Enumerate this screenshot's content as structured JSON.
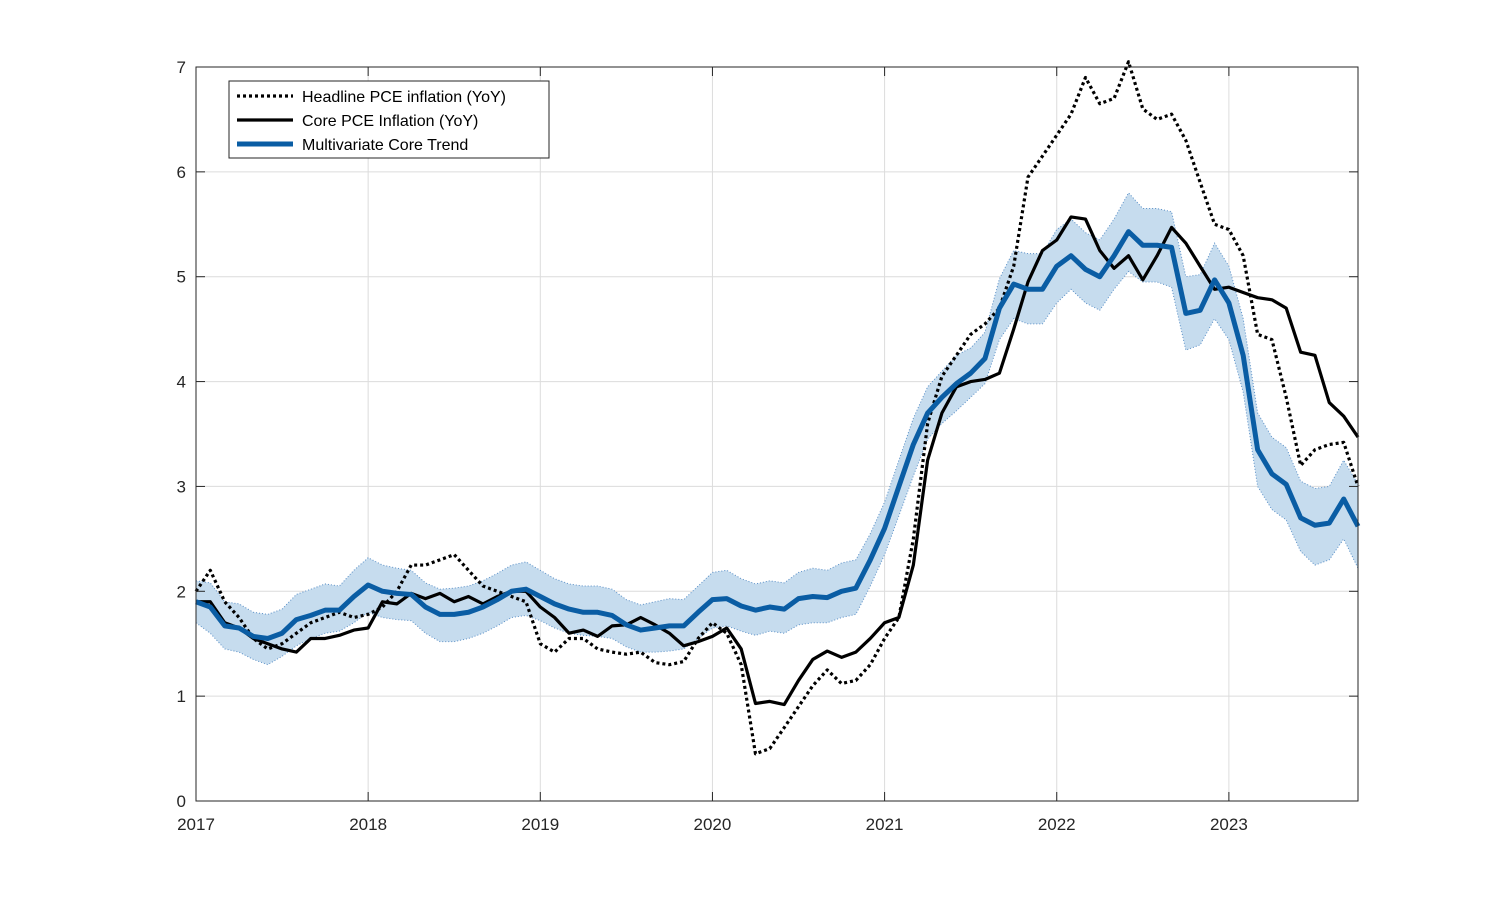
{
  "chart_data": {
    "type": "line",
    "title": "",
    "xlabel": "",
    "ylabel": "",
    "xlim": [
      2017.0,
      2023.75
    ],
    "ylim": [
      0,
      7
    ],
    "x_ticks": [
      2017,
      2018,
      2019,
      2020,
      2021,
      2022,
      2023
    ],
    "x_tick_labels": [
      "2017",
      "2018",
      "2019",
      "2020",
      "2021",
      "2022",
      "2023"
    ],
    "y_ticks": [
      0,
      1,
      2,
      3,
      4,
      5,
      6,
      7
    ],
    "y_tick_labels": [
      "0",
      "1",
      "2",
      "3",
      "4",
      "5",
      "6",
      "7"
    ],
    "grid": true,
    "legend_position": "top-left",
    "colors": {
      "headline": "#000000",
      "core": "#000000",
      "trend": "#0a5da4",
      "band": "#c6dcee"
    },
    "series": [
      {
        "name": "Headline PCE inflation (YoY)",
        "style": "dotted",
        "x": [
          2017.0,
          2017.083,
          2017.167,
          2017.25,
          2017.333,
          2017.417,
          2017.5,
          2017.583,
          2017.667,
          2017.75,
          2017.833,
          2017.917,
          2018.0,
          2018.083,
          2018.167,
          2018.25,
          2018.333,
          2018.417,
          2018.5,
          2018.583,
          2018.667,
          2018.75,
          2018.833,
          2018.917,
          2019.0,
          2019.083,
          2019.167,
          2019.25,
          2019.333,
          2019.417,
          2019.5,
          2019.583,
          2019.667,
          2019.75,
          2019.833,
          2019.917,
          2020.0,
          2020.083,
          2020.167,
          2020.25,
          2020.333,
          2020.417,
          2020.5,
          2020.583,
          2020.667,
          2020.75,
          2020.833,
          2020.917,
          2021.0,
          2021.083,
          2021.167,
          2021.25,
          2021.333,
          2021.417,
          2021.5,
          2021.583,
          2021.667,
          2021.75,
          2021.833,
          2021.917,
          2022.0,
          2022.083,
          2022.167,
          2022.25,
          2022.333,
          2022.417,
          2022.5,
          2022.583,
          2022.667,
          2022.75,
          2022.833,
          2022.917,
          2023.0,
          2023.083,
          2023.167,
          2023.25,
          2023.333,
          2023.417,
          2023.5,
          2023.583,
          2023.667,
          2023.75
        ],
        "y": [
          2.0,
          2.2,
          1.9,
          1.75,
          1.55,
          1.45,
          1.5,
          1.6,
          1.7,
          1.75,
          1.8,
          1.75,
          1.78,
          1.85,
          2.0,
          2.25,
          2.25,
          2.3,
          2.35,
          2.2,
          2.05,
          2.0,
          1.95,
          1.9,
          1.5,
          1.42,
          1.55,
          1.55,
          1.45,
          1.42,
          1.4,
          1.42,
          1.32,
          1.3,
          1.33,
          1.55,
          1.7,
          1.6,
          1.3,
          0.45,
          0.5,
          0.7,
          0.9,
          1.1,
          1.25,
          1.12,
          1.15,
          1.3,
          1.55,
          1.75,
          2.5,
          3.6,
          4.05,
          4.25,
          4.45,
          4.55,
          4.7,
          5.1,
          5.95,
          6.15,
          6.35,
          6.55,
          6.9,
          6.65,
          6.7,
          7.05,
          6.6,
          6.5,
          6.55,
          6.3,
          5.9,
          5.5,
          5.45,
          5.2,
          4.45,
          4.4,
          3.85,
          3.2,
          3.35,
          3.4,
          3.42,
          3.0
        ]
      },
      {
        "name": "Core PCE Inflation (YoY)",
        "style": "solid",
        "x": [
          2017.0,
          2017.083,
          2017.167,
          2017.25,
          2017.333,
          2017.417,
          2017.5,
          2017.583,
          2017.667,
          2017.75,
          2017.833,
          2017.917,
          2018.0,
          2018.083,
          2018.167,
          2018.25,
          2018.333,
          2018.417,
          2018.5,
          2018.583,
          2018.667,
          2018.75,
          2018.833,
          2018.917,
          2019.0,
          2019.083,
          2019.167,
          2019.25,
          2019.333,
          2019.417,
          2019.5,
          2019.583,
          2019.667,
          2019.75,
          2019.833,
          2019.917,
          2020.0,
          2020.083,
          2020.167,
          2020.25,
          2020.333,
          2020.417,
          2020.5,
          2020.583,
          2020.667,
          2020.75,
          2020.833,
          2020.917,
          2021.0,
          2021.083,
          2021.167,
          2021.25,
          2021.333,
          2021.417,
          2021.5,
          2021.583,
          2021.667,
          2021.75,
          2021.833,
          2021.917,
          2022.0,
          2022.083,
          2022.167,
          2022.25,
          2022.333,
          2022.417,
          2022.5,
          2022.583,
          2022.667,
          2022.75,
          2022.833,
          2022.917,
          2023.0,
          2023.083,
          2023.167,
          2023.25,
          2023.333,
          2023.417,
          2023.5,
          2023.583,
          2023.667,
          2023.75
        ],
        "y": [
          1.9,
          1.9,
          1.7,
          1.65,
          1.55,
          1.5,
          1.45,
          1.42,
          1.55,
          1.55,
          1.58,
          1.63,
          1.65,
          1.9,
          1.88,
          1.98,
          1.93,
          1.98,
          1.9,
          1.95,
          1.88,
          1.95,
          2.0,
          2.0,
          1.85,
          1.75,
          1.6,
          1.63,
          1.57,
          1.67,
          1.68,
          1.75,
          1.68,
          1.6,
          1.48,
          1.52,
          1.57,
          1.65,
          1.45,
          0.93,
          0.95,
          0.92,
          1.15,
          1.35,
          1.43,
          1.37,
          1.42,
          1.55,
          1.7,
          1.75,
          2.25,
          3.25,
          3.7,
          3.95,
          4.0,
          4.02,
          4.08,
          4.5,
          4.95,
          5.25,
          5.35,
          5.57,
          5.55,
          5.25,
          5.08,
          5.2,
          4.97,
          5.2,
          5.47,
          5.32,
          5.1,
          4.88,
          4.9,
          4.85,
          4.8,
          4.78,
          4.7,
          4.28,
          4.25,
          3.8,
          3.67,
          3.47
        ]
      },
      {
        "name": "Multivariate Core Trend",
        "style": "solid-thick",
        "x": [
          2017.0,
          2017.083,
          2017.167,
          2017.25,
          2017.333,
          2017.417,
          2017.5,
          2017.583,
          2017.667,
          2017.75,
          2017.833,
          2017.917,
          2018.0,
          2018.083,
          2018.167,
          2018.25,
          2018.333,
          2018.417,
          2018.5,
          2018.583,
          2018.667,
          2018.75,
          2018.833,
          2018.917,
          2019.0,
          2019.083,
          2019.167,
          2019.25,
          2019.333,
          2019.417,
          2019.5,
          2019.583,
          2019.667,
          2019.75,
          2019.833,
          2019.917,
          2020.0,
          2020.083,
          2020.167,
          2020.25,
          2020.333,
          2020.417,
          2020.5,
          2020.583,
          2020.667,
          2020.75,
          2020.833,
          2020.917,
          2021.0,
          2021.083,
          2021.167,
          2021.25,
          2021.333,
          2021.417,
          2021.5,
          2021.583,
          2021.667,
          2021.75,
          2021.833,
          2021.917,
          2022.0,
          2022.083,
          2022.167,
          2022.25,
          2022.333,
          2022.417,
          2022.5,
          2022.583,
          2022.667,
          2022.75,
          2022.833,
          2022.917,
          2023.0,
          2023.083,
          2023.167,
          2023.25,
          2023.333,
          2023.417,
          2023.5,
          2023.583,
          2023.667,
          2023.75
        ],
        "y": [
          1.9,
          1.85,
          1.67,
          1.65,
          1.57,
          1.55,
          1.6,
          1.73,
          1.77,
          1.82,
          1.82,
          1.95,
          2.06,
          2.0,
          1.98,
          1.97,
          1.85,
          1.78,
          1.78,
          1.8,
          1.85,
          1.92,
          2.0,
          2.02,
          1.95,
          1.88,
          1.83,
          1.8,
          1.8,
          1.77,
          1.68,
          1.63,
          1.65,
          1.67,
          1.67,
          1.8,
          1.92,
          1.93,
          1.86,
          1.82,
          1.85,
          1.83,
          1.93,
          1.95,
          1.94,
          2.0,
          2.03,
          2.3,
          2.6,
          3.0,
          3.4,
          3.7,
          3.85,
          3.98,
          4.08,
          4.22,
          4.7,
          4.93,
          4.88,
          4.88,
          5.1,
          5.2,
          5.07,
          5.0,
          5.2,
          5.43,
          5.3,
          5.3,
          5.28,
          4.65,
          4.68,
          4.97,
          4.75,
          4.25,
          3.35,
          3.12,
          3.02,
          2.7,
          2.63,
          2.65,
          2.88,
          2.62
        ]
      }
    ],
    "band": {
      "x": [
        2017.0,
        2017.083,
        2017.167,
        2017.25,
        2017.333,
        2017.417,
        2017.5,
        2017.583,
        2017.667,
        2017.75,
        2017.833,
        2017.917,
        2018.0,
        2018.083,
        2018.167,
        2018.25,
        2018.333,
        2018.417,
        2018.5,
        2018.583,
        2018.667,
        2018.75,
        2018.833,
        2018.917,
        2019.0,
        2019.083,
        2019.167,
        2019.25,
        2019.333,
        2019.417,
        2019.5,
        2019.583,
        2019.667,
        2019.75,
        2019.833,
        2019.917,
        2020.0,
        2020.083,
        2020.167,
        2020.25,
        2020.333,
        2020.417,
        2020.5,
        2020.583,
        2020.667,
        2020.75,
        2020.833,
        2020.917,
        2021.0,
        2021.083,
        2021.167,
        2021.25,
        2021.333,
        2021.417,
        2021.5,
        2021.583,
        2021.667,
        2021.75,
        2021.833,
        2021.917,
        2022.0,
        2022.083,
        2022.167,
        2022.25,
        2022.333,
        2022.417,
        2022.5,
        2022.583,
        2022.667,
        2022.75,
        2022.833,
        2022.917,
        2023.0,
        2023.083,
        2023.167,
        2023.25,
        2023.333,
        2023.417,
        2023.5,
        2023.583,
        2023.667,
        2023.75
      ],
      "lower": [
        1.7,
        1.6,
        1.45,
        1.42,
        1.35,
        1.3,
        1.38,
        1.48,
        1.55,
        1.6,
        1.62,
        1.7,
        1.8,
        1.75,
        1.73,
        1.72,
        1.6,
        1.52,
        1.52,
        1.55,
        1.6,
        1.67,
        1.75,
        1.77,
        1.72,
        1.65,
        1.6,
        1.58,
        1.57,
        1.55,
        1.47,
        1.42,
        1.42,
        1.43,
        1.45,
        1.55,
        1.65,
        1.67,
        1.62,
        1.58,
        1.62,
        1.6,
        1.68,
        1.7,
        1.7,
        1.75,
        1.78,
        2.05,
        2.35,
        2.72,
        3.1,
        3.45,
        3.6,
        3.72,
        3.85,
        3.98,
        4.4,
        4.6,
        4.55,
        4.55,
        4.75,
        4.88,
        4.75,
        4.68,
        4.88,
        5.05,
        4.95,
        4.95,
        4.9,
        4.3,
        4.35,
        4.6,
        4.4,
        3.9,
        3.0,
        2.78,
        2.68,
        2.38,
        2.25,
        2.3,
        2.5,
        2.22
      ],
      "upper": [
        2.1,
        2.08,
        1.9,
        1.88,
        1.8,
        1.78,
        1.83,
        1.97,
        2.02,
        2.07,
        2.05,
        2.2,
        2.32,
        2.25,
        2.22,
        2.2,
        2.08,
        2.02,
        2.03,
        2.05,
        2.1,
        2.17,
        2.25,
        2.28,
        2.2,
        2.12,
        2.07,
        2.05,
        2.05,
        2.02,
        1.92,
        1.87,
        1.9,
        1.93,
        1.92,
        2.05,
        2.18,
        2.2,
        2.12,
        2.07,
        2.1,
        2.08,
        2.18,
        2.22,
        2.2,
        2.27,
        2.3,
        2.55,
        2.85,
        3.25,
        3.65,
        3.95,
        4.1,
        4.25,
        4.32,
        4.47,
        4.98,
        5.25,
        5.22,
        5.22,
        5.45,
        5.55,
        5.42,
        5.35,
        5.55,
        5.8,
        5.65,
        5.65,
        5.62,
        5.0,
        5.02,
        5.32,
        5.1,
        4.6,
        3.7,
        3.47,
        3.37,
        3.05,
        2.98,
        3.0,
        3.25,
        3.02
      ]
    }
  }
}
